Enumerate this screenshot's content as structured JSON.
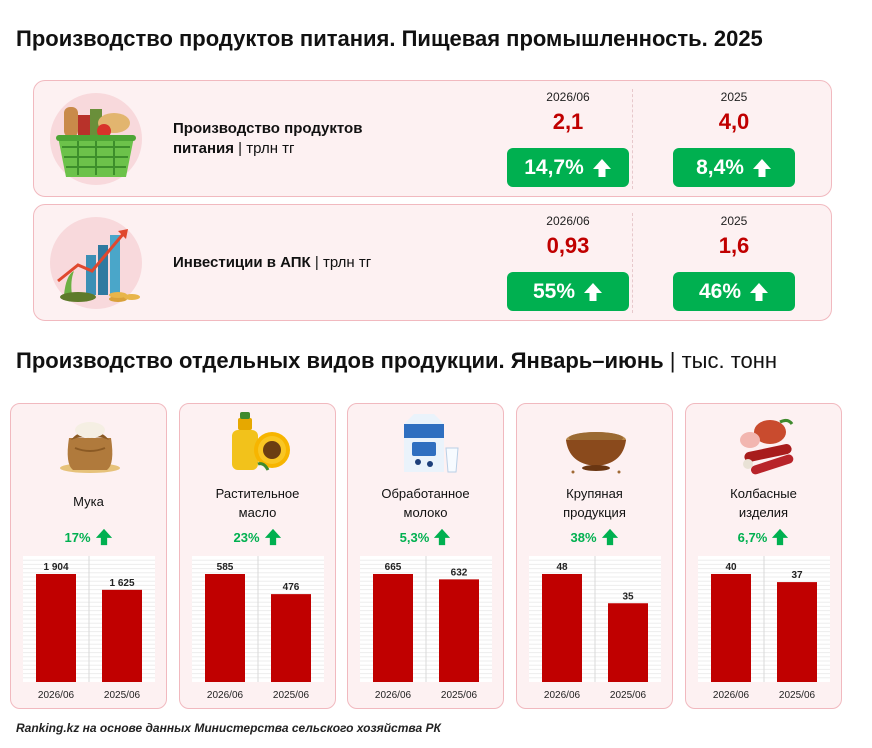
{
  "colors": {
    "accent_red": "#c00000",
    "growth_green": "#00b050",
    "card_bg": "#fdf1f2",
    "card_border": "#f1b9bf"
  },
  "header": {
    "title": "Производство продуктов питания. Пищевая промышленность. 2025"
  },
  "kpis": [
    {
      "icon": "grocery-basket-icon",
      "label_bold": "Производство продуктов питания",
      "label_unit": " | трлн тг",
      "periods": [
        {
          "period": "2026/06",
          "value": "2,1",
          "change": "14,7%",
          "change_direction": "up"
        },
        {
          "period": "2025",
          "value": "4,0",
          "change": "8,4%",
          "change_direction": "up"
        }
      ]
    },
    {
      "icon": "investment-growth-icon",
      "label_bold": "Инвестиции в АПК",
      "label_unit": " | трлн тг",
      "periods": [
        {
          "period": "2026/06",
          "value": "0,93",
          "change": "55%",
          "change_direction": "up"
        },
        {
          "period": "2025",
          "value": "1,6",
          "change": "46%",
          "change_direction": "up"
        }
      ]
    }
  ],
  "products_section": {
    "title": "Производство отдельных видов продукции. Январь–июнь",
    "unit": " | тыс. тонн"
  },
  "chart_data": [
    {
      "type": "bar",
      "title": "Мука",
      "growth": "17%",
      "categories": [
        "2026/06",
        "2025/06"
      ],
      "values": [
        1904,
        1625
      ],
      "value_labels": [
        "1 904",
        "1 625"
      ],
      "icon": "flour-sack-icon"
    },
    {
      "type": "bar",
      "title": "Растительное масло",
      "growth": "23%",
      "categories": [
        "2026/06",
        "2025/06"
      ],
      "values": [
        585,
        476
      ],
      "value_labels": [
        "585",
        "476"
      ],
      "icon": "sunflower-oil-icon"
    },
    {
      "type": "bar",
      "title": "Обработанное молоко",
      "growth": "5,3%",
      "categories": [
        "2026/06",
        "2025/06"
      ],
      "values": [
        665,
        632
      ],
      "value_labels": [
        "665",
        "632"
      ],
      "icon": "milk-icon"
    },
    {
      "type": "bar",
      "title": "Крупяная продукция",
      "growth": "38%",
      "categories": [
        "2026/06",
        "2025/06"
      ],
      "values": [
        48,
        35
      ],
      "value_labels": [
        "48",
        "35"
      ],
      "icon": "grain-bowl-icon"
    },
    {
      "type": "bar",
      "title": "Колбасные изделия",
      "growth": "6,7%",
      "categories": [
        "2026/06",
        "2025/06"
      ],
      "values": [
        40,
        37
      ],
      "value_labels": [
        "40",
        "37"
      ],
      "icon": "sausage-icon"
    }
  ],
  "footer": {
    "source": "Ranking.kz на основе данных Министерства сельского хозяйства РК"
  }
}
